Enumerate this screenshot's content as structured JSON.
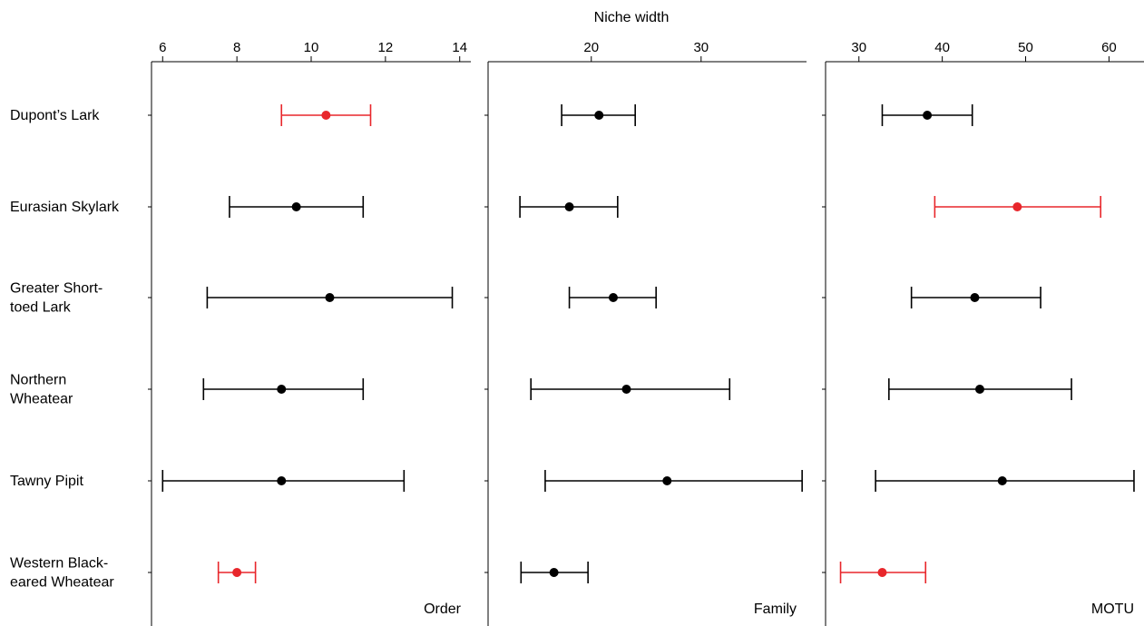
{
  "chart_data": {
    "type": "scatter",
    "title": "Niche width",
    "categories": [
      "Dupont’s Lark",
      "Eurasian Skylark",
      "Greater Short-toed Lark",
      "Northern Wheatear",
      "Tawny Pipit",
      "Western Black-eared Wheatear"
    ],
    "category_lines": [
      [
        "Dupont’s Lark"
      ],
      [
        "Eurasian Skylark"
      ],
      [
        "Greater Short-",
        "toed Lark"
      ],
      [
        "Northern",
        "Wheatear"
      ],
      [
        "Tawny Pipit"
      ],
      [
        "Western Black-",
        "eared Wheatear"
      ]
    ],
    "highlight_color": "#e8262b",
    "default_color": "#000000",
    "panels": [
      {
        "name": "Order",
        "xlim": [
          5.7,
          14.3
        ],
        "ticks": [
          6,
          8,
          10,
          12,
          14
        ],
        "tick_labels": [
          "6",
          "8",
          "10",
          "12",
          "14"
        ],
        "points": [
          {
            "est": 10.4,
            "low": 9.2,
            "high": 11.6,
            "highlight": true
          },
          {
            "est": 9.6,
            "low": 7.8,
            "high": 11.4,
            "highlight": false
          },
          {
            "est": 10.5,
            "low": 7.2,
            "high": 13.8,
            "highlight": false
          },
          {
            "est": 9.2,
            "low": 7.1,
            "high": 11.4,
            "highlight": false
          },
          {
            "est": 9.2,
            "low": 6.0,
            "high": 12.5,
            "highlight": false
          },
          {
            "est": 8.0,
            "low": 7.5,
            "high": 8.5,
            "highlight": true
          }
        ]
      },
      {
        "name": "Family",
        "xlim": [
          10.6,
          39.6
        ],
        "ticks": [
          20,
          30
        ],
        "tick_labels": [
          "20",
          "30"
        ],
        "points": [
          {
            "est": 20.7,
            "low": 17.3,
            "high": 24.0,
            "highlight": false
          },
          {
            "est": 18.0,
            "low": 13.5,
            "high": 22.4,
            "highlight": false
          },
          {
            "est": 22.0,
            "low": 18.0,
            "high": 25.9,
            "highlight": false
          },
          {
            "est": 23.2,
            "low": 14.5,
            "high": 32.6,
            "highlight": false
          },
          {
            "est": 26.9,
            "low": 15.8,
            "high": 39.2,
            "highlight": false
          },
          {
            "est": 16.6,
            "low": 13.6,
            "high": 19.7,
            "highlight": false
          }
        ]
      },
      {
        "name": "MOTU",
        "xlim": [
          26.0,
          64.2
        ],
        "ticks": [
          30,
          40,
          50,
          60
        ],
        "tick_labels": [
          "30",
          "40",
          "50",
          "60"
        ],
        "points": [
          {
            "est": 38.2,
            "low": 32.8,
            "high": 43.6,
            "highlight": false
          },
          {
            "est": 49.0,
            "low": 39.1,
            "high": 59.0,
            "highlight": true
          },
          {
            "est": 43.9,
            "low": 36.3,
            "high": 51.8,
            "highlight": false
          },
          {
            "est": 44.5,
            "low": 33.6,
            "high": 55.5,
            "highlight": false
          },
          {
            "est": 47.2,
            "low": 32.0,
            "high": 63.0,
            "highlight": false
          },
          {
            "est": 32.8,
            "low": 27.8,
            "high": 38.0,
            "highlight": true
          }
        ]
      }
    ]
  }
}
